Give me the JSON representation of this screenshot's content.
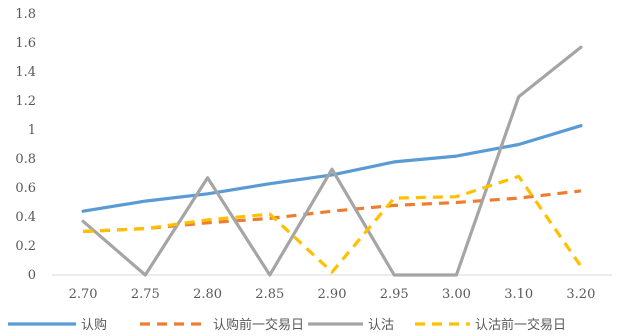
{
  "chart_data": {
    "type": "line",
    "categories": [
      "2.70",
      "2.75",
      "2.80",
      "2.85",
      "2.90",
      "2.95",
      "3.00",
      "3.10",
      "3.20"
    ],
    "ylim": [
      0,
      1.8
    ],
    "yticks": [
      "0",
      "0.2",
      "0.4",
      "0.6",
      "0.8",
      "1",
      "1.2",
      "1.4",
      "1.6",
      "1.8"
    ],
    "grid": false,
    "legend_position": "bottom",
    "series": [
      {
        "name": "认购",
        "color": "#5b9bd5",
        "dash": "solid",
        "values": [
          0.44,
          0.51,
          0.56,
          0.63,
          0.69,
          0.78,
          0.82,
          0.9,
          1.03
        ]
      },
      {
        "name": "认购前一交易日",
        "color": "#ed7d31",
        "dash": "dashed",
        "values": [
          0.3,
          0.32,
          0.36,
          0.39,
          0.44,
          0.48,
          0.5,
          0.53,
          0.58
        ]
      },
      {
        "name": "认沽",
        "color": "#a5a5a5",
        "dash": "solid",
        "values": [
          0.37,
          0.0,
          0.67,
          0.0,
          0.73,
          0.0,
          0.0,
          1.23,
          1.57
        ]
      },
      {
        "name": "认沽前一交易日",
        "color": "#ffc000",
        "dash": "dashed",
        "values": [
          0.3,
          0.32,
          0.38,
          0.42,
          0.02,
          0.53,
          0.54,
          0.68,
          0.06
        ]
      }
    ]
  }
}
